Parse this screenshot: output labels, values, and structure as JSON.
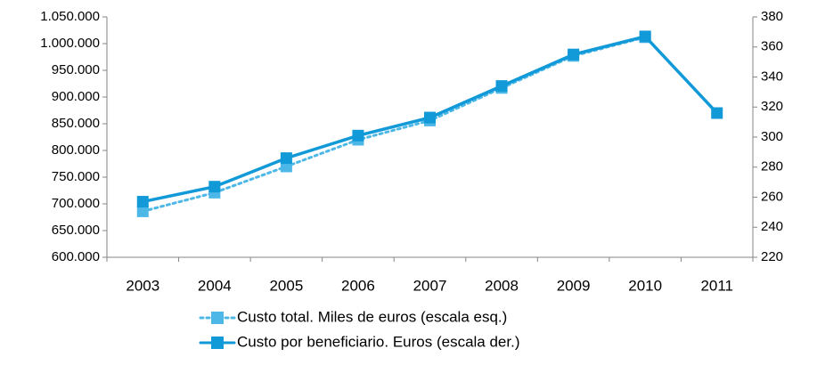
{
  "chart_data": {
    "type": "line",
    "categories": [
      "2003",
      "2004",
      "2005",
      "2006",
      "2007",
      "2008",
      "2009",
      "2010",
      "2011"
    ],
    "series": [
      {
        "name": "Custo total. Miles de euros (escala esq.)",
        "color": "#4db8e8",
        "style": "dotted",
        "values": [
          686000,
          721000,
          770000,
          820000,
          856000,
          917000,
          977000,
          1012000,
          null
        ]
      },
      {
        "name": "Custo por beneficiario. Euros (escala der.)",
        "color": "#1199d8",
        "style": "solid",
        "axis": "y2",
        "values": [
          257,
          267,
          286,
          301,
          313,
          334,
          355,
          367,
          316
        ]
      }
    ],
    "ylim": [
      600000,
      1050000
    ],
    "yticks": [
      {
        "value": 600000,
        "label": "600.000"
      },
      {
        "value": 650000,
        "label": "650.000"
      },
      {
        "value": 700000,
        "label": "700.000"
      },
      {
        "value": 750000,
        "label": "750.000"
      },
      {
        "value": 800000,
        "label": "800.000"
      },
      {
        "value": 850000,
        "label": "850.000"
      },
      {
        "value": 900000,
        "label": "900.000"
      },
      {
        "value": 950000,
        "label": "950.000"
      },
      {
        "value": 1000000,
        "label": "1.000.000"
      },
      {
        "value": 1050000,
        "label": "1.050.000"
      }
    ],
    "y2lim": [
      220,
      380
    ],
    "y2ticks": [
      220,
      240,
      260,
      280,
      300,
      320,
      340,
      360,
      380
    ],
    "grid": false,
    "legend": "bottom"
  }
}
